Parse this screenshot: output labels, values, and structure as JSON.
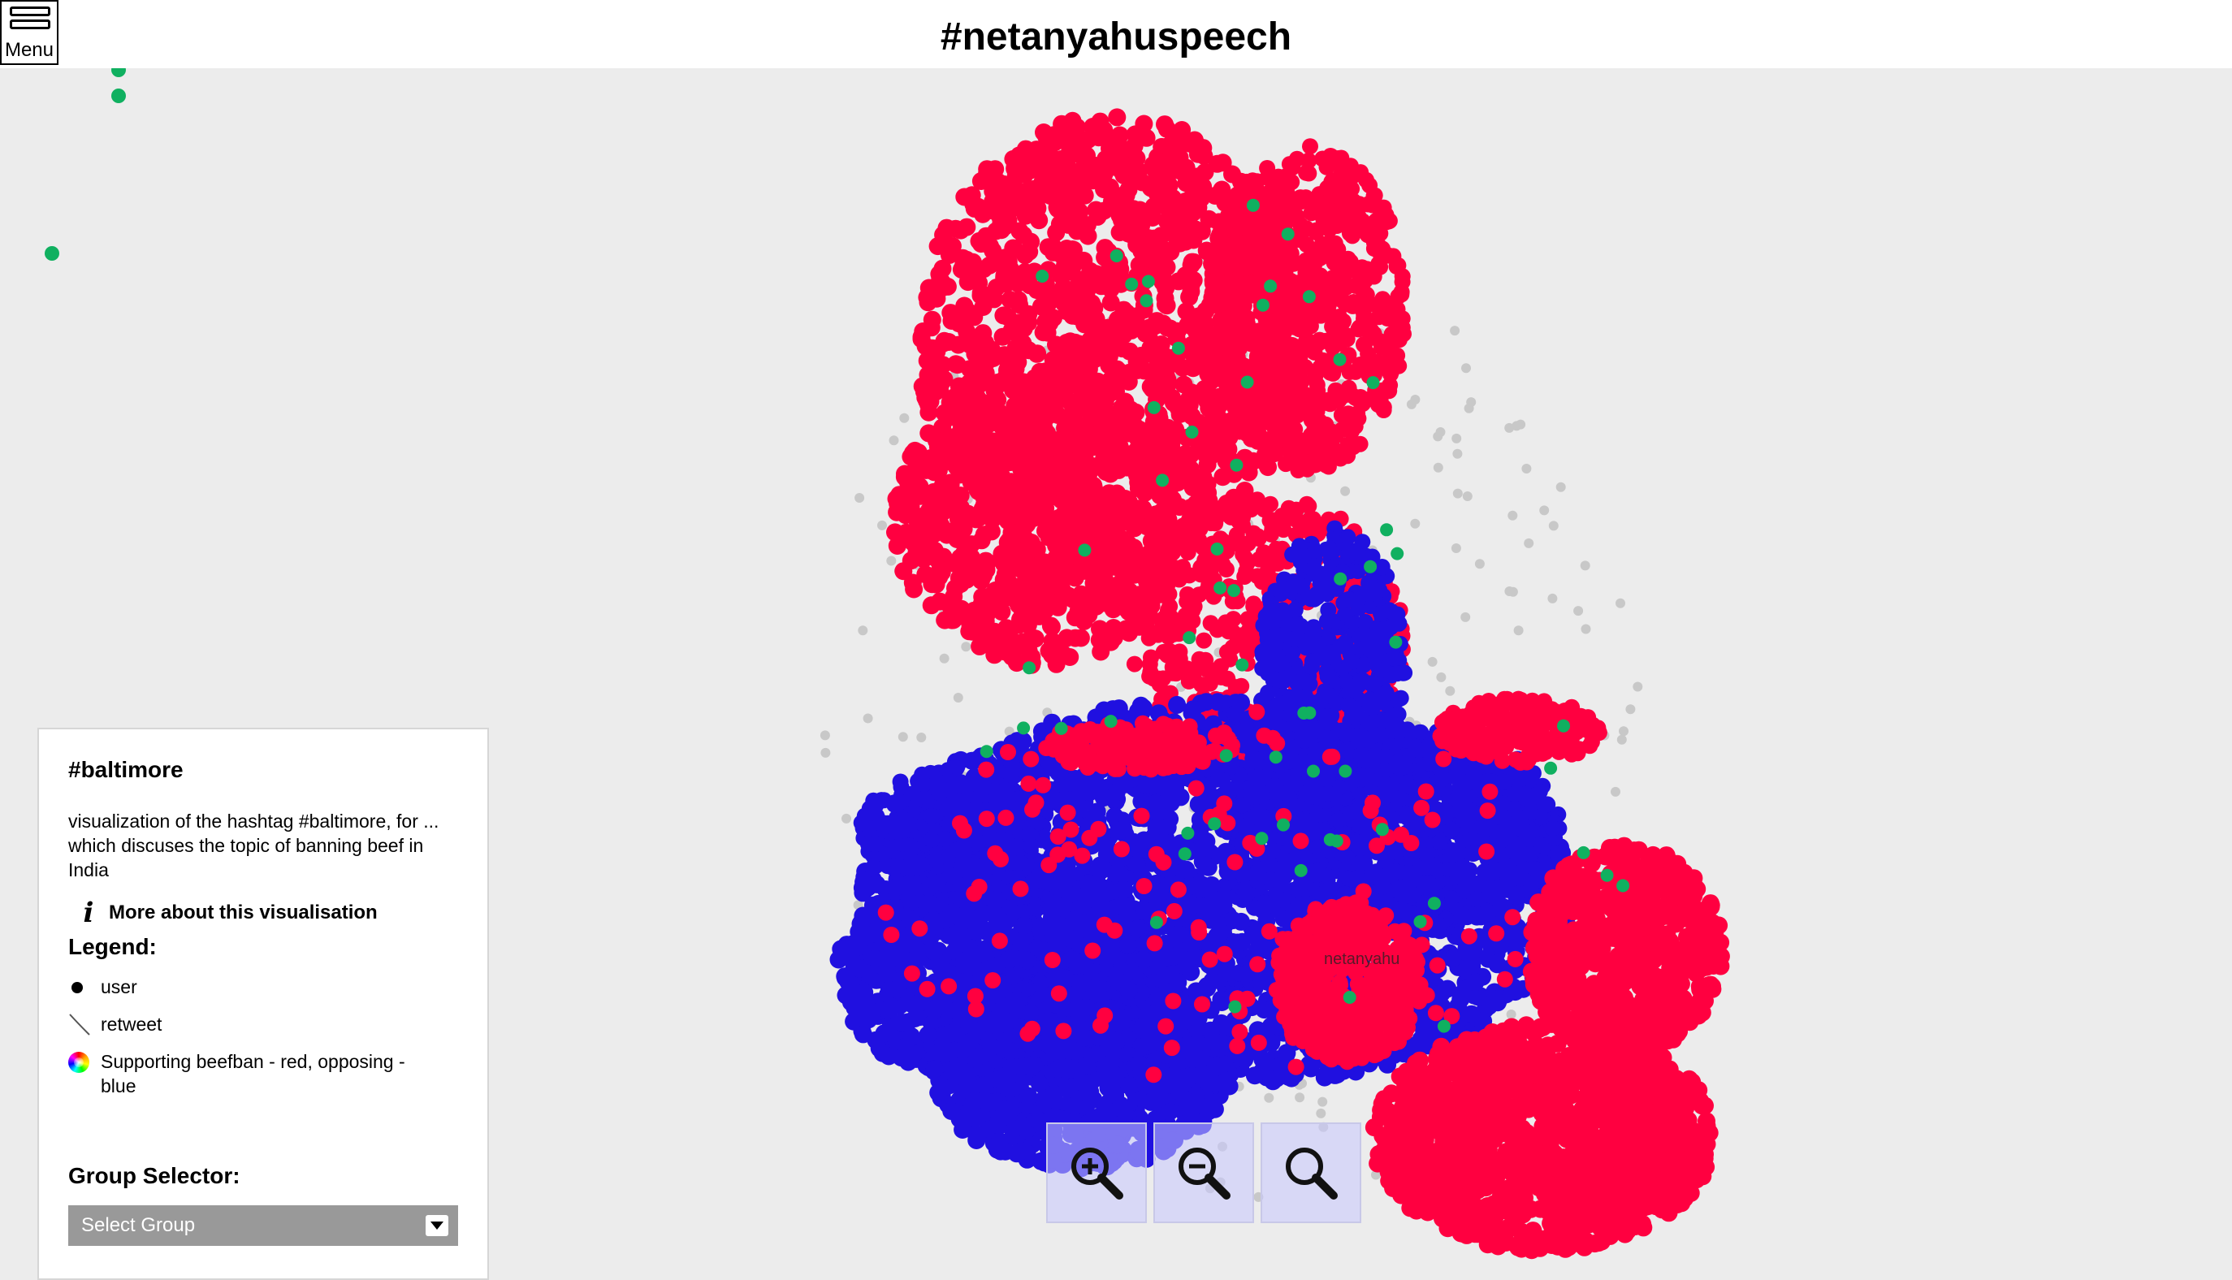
{
  "header": {
    "title": "#netanyahuspeech",
    "menu_label": "Menu"
  },
  "graph": {
    "node_label": "netanyahu",
    "colors": {
      "supporting": "#ff0040",
      "opposing": "#2010e0",
      "other": "#10b060",
      "edge": "#c8c8c8"
    }
  },
  "panel": {
    "title": "#baltimore",
    "description": "visualization of the hashtag #baltimore, for ... which discuses the topic of banning beef in India",
    "more_link": "More about this visualisation",
    "legend_title": "Legend:",
    "legend_items": [
      {
        "label": "user",
        "icon": "dot-icon"
      },
      {
        "label": "retweet",
        "icon": "edge-icon"
      },
      {
        "label": "Supporting beefban - red, opposing - blue",
        "icon": "color-wheel-icon"
      }
    ],
    "group_selector_title": "Group Selector:",
    "group_select_value": "Select Group"
  },
  "zoom_controls": [
    {
      "name": "zoom-in-button",
      "icon": "zoom-in-icon"
    },
    {
      "name": "zoom-out-button",
      "icon": "zoom-out-icon"
    },
    {
      "name": "zoom-reset-button",
      "icon": "zoom-fit-icon"
    }
  ]
}
